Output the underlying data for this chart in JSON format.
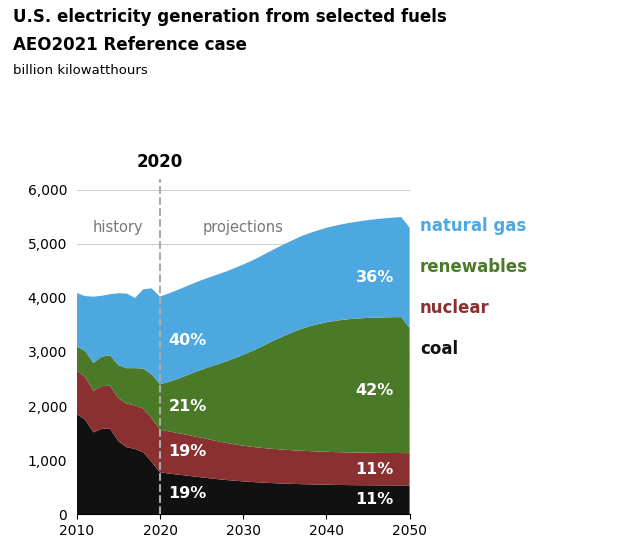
{
  "title_line1": "U.S. electricity generation from selected fuels",
  "title_line2": "AEO2021 Reference case",
  "ylabel": "billion kilowatthours",
  "colors": {
    "coal": "#111111",
    "nuclear": "#8b3030",
    "renewables": "#4a7a28",
    "natural_gas": "#4da8e0"
  },
  "legend_colors": {
    "natural gas": "#4da8e0",
    "renewables": "#4a7a28",
    "nuclear": "#8b3030",
    "coal": "#111111"
  },
  "years_history": [
    2010,
    2011,
    2012,
    2013,
    2014,
    2015,
    2016,
    2017,
    2018,
    2019,
    2020
  ],
  "years_projection": [
    2020,
    2021,
    2022,
    2023,
    2024,
    2025,
    2026,
    2027,
    2028,
    2029,
    2030,
    2031,
    2032,
    2033,
    2034,
    2035,
    2036,
    2037,
    2038,
    2039,
    2040,
    2041,
    2042,
    2043,
    2044,
    2045,
    2046,
    2047,
    2048,
    2049,
    2050
  ],
  "coal_history": [
    1850,
    1750,
    1514,
    1580,
    1582,
    1350,
    1240,
    1207,
    1145,
    966,
    774
  ],
  "nuclear_history": [
    810,
    790,
    769,
    789,
    797,
    797,
    805,
    805,
    808,
    809,
    790
  ],
  "renewables_history": [
    440,
    480,
    515,
    545,
    560,
    610,
    655,
    690,
    740,
    810,
    840
  ],
  "natural_gas_history": [
    990,
    1013,
    1225,
    1125,
    1130,
    1330,
    1380,
    1296,
    1468,
    1590,
    1620
  ],
  "coal_proj": [
    774,
    755,
    735,
    718,
    700,
    682,
    665,
    648,
    633,
    620,
    608,
    597,
    588,
    580,
    573,
    567,
    562,
    557,
    553,
    549,
    546,
    543,
    541,
    539,
    537,
    536,
    535,
    534,
    533,
    533,
    532
  ],
  "nuclear_proj": [
    790,
    780,
    770,
    758,
    745,
    732,
    715,
    700,
    685,
    672,
    660,
    650,
    642,
    636,
    631,
    626,
    621,
    617,
    614,
    611,
    609,
    607,
    605,
    604,
    603,
    602,
    601,
    600,
    600,
    599,
    598
  ],
  "renewables_proj": [
    840,
    910,
    990,
    1080,
    1170,
    1260,
    1345,
    1430,
    1510,
    1595,
    1680,
    1765,
    1855,
    1945,
    2030,
    2110,
    2185,
    2255,
    2310,
    2355,
    2395,
    2425,
    2450,
    2468,
    2482,
    2492,
    2500,
    2506,
    2510,
    2513,
    2315
  ],
  "natural_gas_proj": [
    1620,
    1635,
    1645,
    1648,
    1652,
    1655,
    1658,
    1660,
    1663,
    1666,
    1669,
    1673,
    1677,
    1682,
    1688,
    1695,
    1703,
    1712,
    1722,
    1733,
    1745,
    1757,
    1769,
    1782,
    1795,
    1808,
    1820,
    1831,
    1841,
    1849,
    1855
  ],
  "ylim": [
    0,
    6200
  ],
  "yticks": [
    0,
    1000,
    2000,
    3000,
    4000,
    5000,
    6000
  ],
  "xticks": [
    2010,
    2020,
    2030,
    2040,
    2050
  ],
  "history_label": "history",
  "projections_label": "projections",
  "year_label": "2020"
}
